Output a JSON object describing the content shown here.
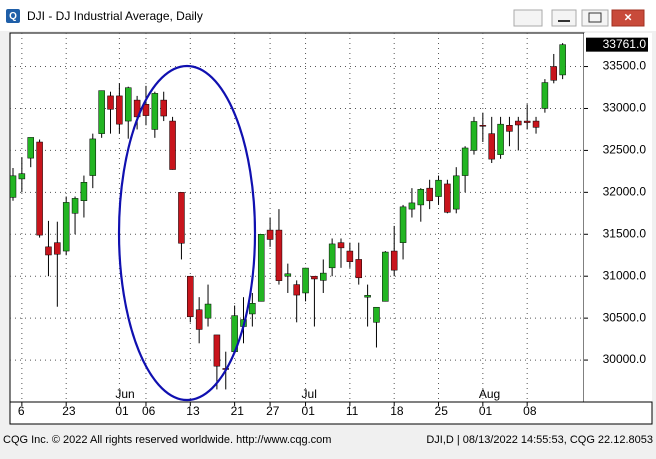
{
  "chart_data": {
    "type": "candlestick",
    "title": "DJI - DJ Industrial Average, Daily",
    "categories": [
      null,
      "6",
      null,
      null,
      null,
      null,
      "23",
      null,
      null,
      null,
      null,
      null,
      "01",
      null,
      null,
      "06",
      null,
      null,
      null,
      null,
      "13",
      null,
      null,
      null,
      null,
      "21",
      null,
      null,
      null,
      "27",
      null,
      null,
      null,
      "01",
      null,
      null,
      null,
      null,
      "11",
      null,
      null,
      null,
      null,
      "18",
      null,
      null,
      null,
      null,
      "25",
      null,
      null,
      null,
      null,
      "01",
      null,
      null,
      null,
      null,
      "08",
      null,
      null,
      null,
      null
    ],
    "month_labels": [
      null,
      null,
      null,
      null,
      null,
      null,
      null,
      null,
      null,
      null,
      null,
      null,
      "Jun",
      null,
      null,
      null,
      null,
      null,
      null,
      null,
      null,
      null,
      null,
      null,
      null,
      null,
      null,
      null,
      null,
      null,
      null,
      null,
      null,
      "Jul",
      null,
      null,
      null,
      null,
      null,
      null,
      null,
      null,
      null,
      null,
      null,
      null,
      null,
      null,
      null,
      null,
      null,
      null,
      null,
      "Aug",
      null,
      null,
      null,
      null,
      null,
      null,
      null,
      null,
      null
    ],
    "open": [
      31940,
      32160,
      32408,
      32600,
      31350,
      31400,
      31300,
      31750,
      31900,
      32200,
      32700,
      33150,
      33150,
      32850,
      33100,
      33050,
      32750,
      33100,
      32850,
      32000,
      31000,
      30600,
      30500,
      30300,
      29900,
      30100,
      30400,
      30550,
      30700,
      31550,
      31550,
      31000,
      30900,
      30800,
      31000,
      30950,
      31100,
      31400,
      31300,
      31200,
      30750,
      30450,
      30700,
      31300,
      31400,
      31800,
      31850,
      32050,
      31950,
      32100,
      31800,
      32200,
      32500,
      32800,
      32700,
      32450,
      32800,
      32850,
      32850,
      32850,
      33000,
      33500,
      33400
    ],
    "high": [
      32290,
      32420,
      32655,
      32630,
      31660,
      31650,
      31950,
      31950,
      32200,
      32700,
      33213,
      33200,
      33300,
      33260,
      33150,
      33270,
      33200,
      33200,
      32900,
      32000,
      31000,
      30750,
      30900,
      30300,
      30100,
      30650,
      30750,
      30800,
      31500,
      31700,
      31800,
      31150,
      30950,
      31100,
      31000,
      31200,
      31450,
      31450,
      31400,
      31400,
      30900,
      30600,
      31300,
      31600,
      31850,
      32050,
      32050,
      32150,
      32200,
      32150,
      32300,
      32550,
      32900,
      32950,
      32900,
      32900,
      32900,
      32900,
      33050,
      32900,
      33350,
      33650,
      33780
    ],
    "low": [
      31900,
      32000,
      32300,
      31460,
      31000,
      30636,
      31250,
      31500,
      31700,
      32050,
      32650,
      32700,
      32700,
      32640,
      32750,
      32800,
      32650,
      32850,
      32270,
      31200,
      30450,
      30200,
      30400,
      29650,
      29650,
      30100,
      30200,
      30400,
      30700,
      31350,
      30900,
      30800,
      30450,
      30700,
      30400,
      30800,
      31000,
      31100,
      31100,
      30900,
      30400,
      30150,
      30700,
      31000,
      31200,
      31700,
      31650,
      31800,
      31850,
      31750,
      31750,
      32000,
      32450,
      32600,
      32350,
      32400,
      32550,
      32500,
      32750,
      32700,
      32950,
      33300,
      33350
    ],
    "close": [
      32197,
      32223,
      32655,
      31490,
      31253,
      31262,
      31880,
      31928,
      32120,
      32637,
      33213,
      32990,
      32813,
      33248,
      32900,
      32915,
      33180,
      32910,
      32272,
      31393,
      30516,
      30365,
      30668,
      29927,
      29888,
      30530,
      30483,
      30677,
      31500,
      31438,
      30947,
      31029,
      30775,
      31097,
      30967,
      31037,
      31385,
      31338,
      31173,
      30981,
      30772,
      30630,
      31288,
      31072,
      31827,
      31874,
      32036,
      31899,
      32145,
      31762,
      32197,
      32529,
      32845,
      32798,
      32396,
      32813,
      32727,
      32803,
      32832,
      32775,
      33309,
      33336,
      33761
    ],
    "up_color": "#22b522",
    "down_color": "#c8141c",
    "ylim": [
      29500,
      33900
    ],
    "yticks": [
      {
        "value": 30000,
        "label": "30000.0"
      },
      {
        "value": 30500,
        "label": "30500.0"
      },
      {
        "value": 31000,
        "label": "31000.0"
      },
      {
        "value": 31500,
        "label": "31500.0"
      },
      {
        "value": 32000,
        "label": "32000.0"
      },
      {
        "value": 32500,
        "label": "32500.0"
      },
      {
        "value": 33000,
        "label": "33000.0"
      },
      {
        "value": 33500,
        "label": "33500.0"
      }
    ],
    "grid": true,
    "last_value_label": "33761.0"
  },
  "window": {
    "footer_left": "CQG Inc. © 2022 All rights reserved worldwide. http://www.cqg.com",
    "footer_right": "DJI,D | 08/13/2022 14:55:53, CQG 22.12.8053"
  }
}
